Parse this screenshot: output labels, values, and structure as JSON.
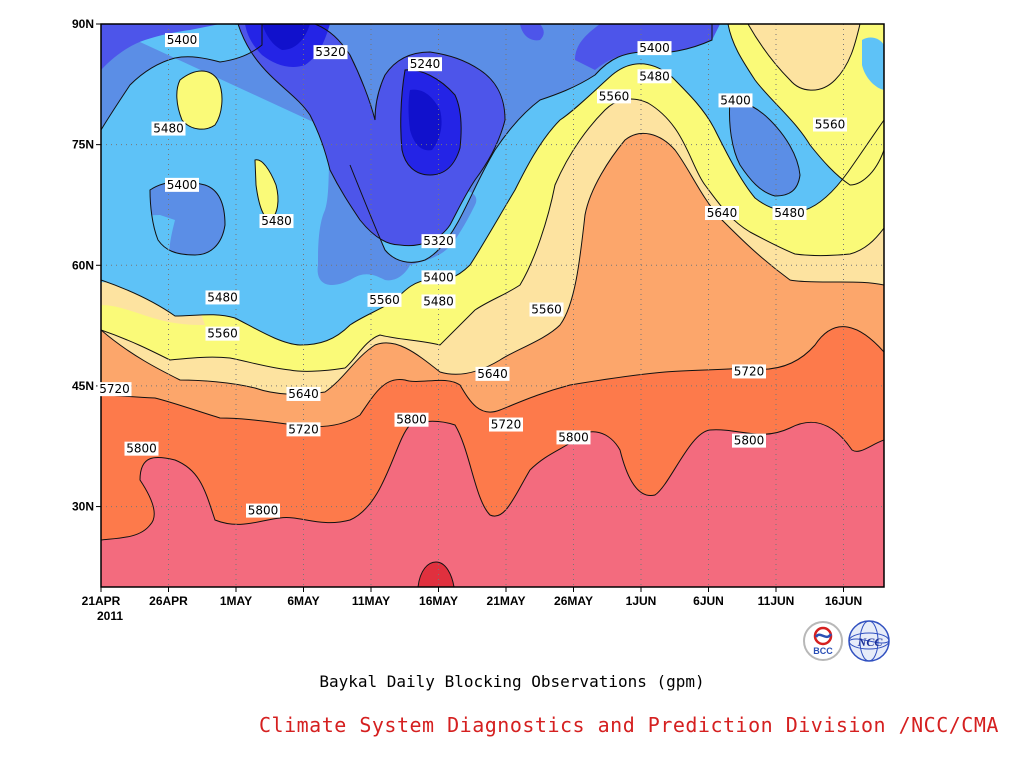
{
  "chart_data": {
    "type": "heatmap",
    "subtype": "filled-contour",
    "title": "Baykal Daily Blocking Observations (gpm)",
    "x_ticks": [
      "21APR",
      "26APR",
      "1MAY",
      "6MAY",
      "11MAY",
      "16MAY",
      "21MAY",
      "26MAY",
      "1JUN",
      "6JUN",
      "11JUN",
      "16JUN"
    ],
    "x_sublabel": "2011",
    "x_range": [
      "2011-04-21",
      "2011-06-18"
    ],
    "y_ticks": [
      "30N",
      "45N",
      "60N",
      "75N",
      "90N"
    ],
    "y_range": [
      20,
      90
    ],
    "grid": true,
    "contour_levels": [
      5240,
      5320,
      5400,
      5480,
      5560,
      5640,
      5720,
      5800
    ],
    "fill_colors": [
      "#1111cc",
      "#2424e6",
      "#4d55ea",
      "#5b8ee6",
      "#5ec2f7",
      "#fafa78",
      "#fde3a0",
      "#fca66b",
      "#fd7a4b",
      "#f36b7e",
      "#e0303e"
    ],
    "contour_labels": [
      {
        "x": "2011-04-27",
        "y": 88,
        "value": 5400
      },
      {
        "x": "2011-05-08",
        "y": 86.5,
        "value": 5320
      },
      {
        "x": "2011-05-15",
        "y": 85,
        "value": 5240
      },
      {
        "x": "2011-06-01",
        "y": 87,
        "value": 5400
      },
      {
        "x": "2011-06-01",
        "y": 83.5,
        "value": 5480
      },
      {
        "x": "2011-05-29",
        "y": 81,
        "value": 5560
      },
      {
        "x": "2011-06-07",
        "y": 80.5,
        "value": 5400
      },
      {
        "x": "2011-06-14",
        "y": 77.5,
        "value": 5560
      },
      {
        "x": "2011-04-26",
        "y": 77,
        "value": 5480
      },
      {
        "x": "2011-04-27",
        "y": 70,
        "value": 5400
      },
      {
        "x": "2011-05-04",
        "y": 65.5,
        "value": 5480
      },
      {
        "x": "2011-05-16",
        "y": 63,
        "value": 5320
      },
      {
        "x": "2011-06-06",
        "y": 66.5,
        "value": 5640
      },
      {
        "x": "2011-06-11",
        "y": 66.5,
        "value": 5480
      },
      {
        "x": "2011-05-16",
        "y": 58.5,
        "value": 5400
      },
      {
        "x": "2011-05-16",
        "y": 55.5,
        "value": 5480
      },
      {
        "x": "2011-05-12",
        "y": 55.7,
        "value": 5560
      },
      {
        "x": "2011-04-30",
        "y": 56,
        "value": 5480
      },
      {
        "x": "2011-05-24",
        "y": 54.5,
        "value": 5560
      },
      {
        "x": "2011-04-30",
        "y": 51.5,
        "value": 5560
      },
      {
        "x": "2011-05-20",
        "y": 46.5,
        "value": 5640
      },
      {
        "x": "2011-05-06",
        "y": 44,
        "value": 5640
      },
      {
        "x": "2011-06-08",
        "y": 46.8,
        "value": 5720
      },
      {
        "x": "2011-04-22",
        "y": 44.6,
        "value": 5720
      },
      {
        "x": "2011-05-06",
        "y": 39.6,
        "value": 5720
      },
      {
        "x": "2011-05-21",
        "y": 40.2,
        "value": 5720
      },
      {
        "x": "2011-05-14",
        "y": 40.8,
        "value": 5800
      },
      {
        "x": "2011-05-26",
        "y": 38.6,
        "value": 5800
      },
      {
        "x": "2011-04-24",
        "y": 37.2,
        "value": 5800
      },
      {
        "x": "2011-06-08",
        "y": 38.2,
        "value": 5800
      },
      {
        "x": "2011-05-03",
        "y": 29.5,
        "value": 5800
      }
    ]
  },
  "footer": {
    "credit": "Climate System Diagnostics and Prediction Division /NCC/CMA",
    "logo_left_text": "BCC",
    "logo_right_text": "NCC"
  }
}
